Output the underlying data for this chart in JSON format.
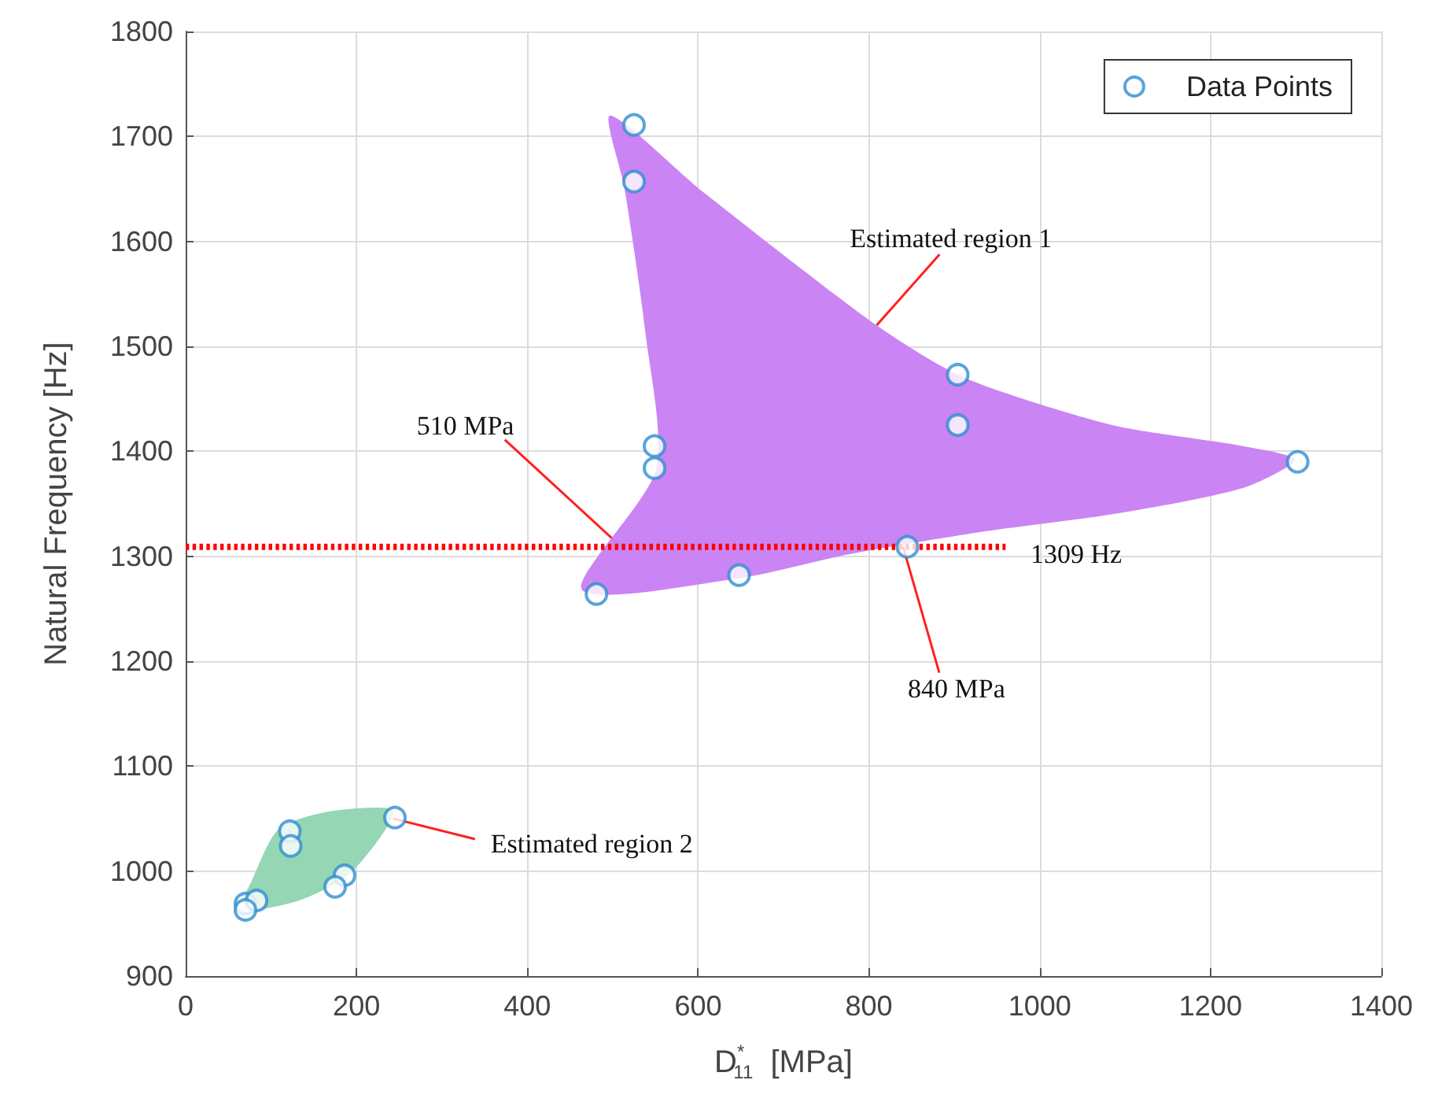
{
  "chart_data": {
    "type": "scatter",
    "xlabel": "D$^{*}$$_{11}$  [MPa]",
    "ylabel": "Natural Frequency [Hz]",
    "xlim": [
      0,
      1400
    ],
    "xticks": [
      0,
      200,
      400,
      600,
      800,
      1000,
      1200,
      1400
    ],
    "ylim": [
      900,
      1800
    ],
    "yticks": [
      900,
      1000,
      1100,
      1200,
      1300,
      1400,
      1500,
      1600,
      1700,
      1800
    ],
    "grid": true,
    "legend": "top right",
    "series": [
      {
        "type": "area",
        "color": "#c77df3",
        "x": [
          497,
          514,
          538,
          551,
          464,
          648,
          777,
          930,
          1085,
          1238,
          1299,
          1238,
          1085,
          912,
          809,
          606
        ],
        "values": [
          1720,
          1650,
          1515,
          1383,
          1268,
          1279,
          1302,
          1323,
          1340,
          1365,
          1392,
          1405,
          1425,
          1470,
          1520,
          1647
        ]
      },
      {
        "type": "area",
        "color": "#8fd4b0",
        "x": [
          243,
          169,
          109,
          77,
          64,
          133,
          193
        ],
        "values": [
          1057,
          1057,
          1040,
          990,
          963,
          972,
          998
        ]
      },
      {
        "type": "line",
        "color": "#ff0000",
        "line_style": "dotted",
        "marker": "none",
        "x": [
          0,
          960
        ],
        "values": [
          1309,
          1309
        ]
      },
      {
        "marker": "circle",
        "name": "Data Points",
        "color": "#2f8fd0",
        "x": [
          525,
          525,
          549,
          549,
          904,
          904,
          1302,
          845,
          648,
          481,
          245,
          122,
          123,
          186,
          175,
          70,
          83,
          70
        ],
        "values": [
          1711,
          1657,
          1405,
          1384,
          1473,
          1425,
          1390,
          1309,
          1282,
          1264,
          1051,
          1038,
          1024,
          996,
          985,
          969,
          972,
          963
        ]
      }
    ],
    "annotations": [
      {
        "text": "Estimated region 1",
        "x": 809,
        "y": 1520
      },
      {
        "text": "510 MPa",
        "x": 510,
        "y": 1309
      },
      {
        "text": "840 MPa",
        "x": 840,
        "y": 1309
      },
      "1309 Hz",
      {
        "text": "Estimated region 2",
        "x": 243,
        "y": 1050
      }
    ]
  }
}
